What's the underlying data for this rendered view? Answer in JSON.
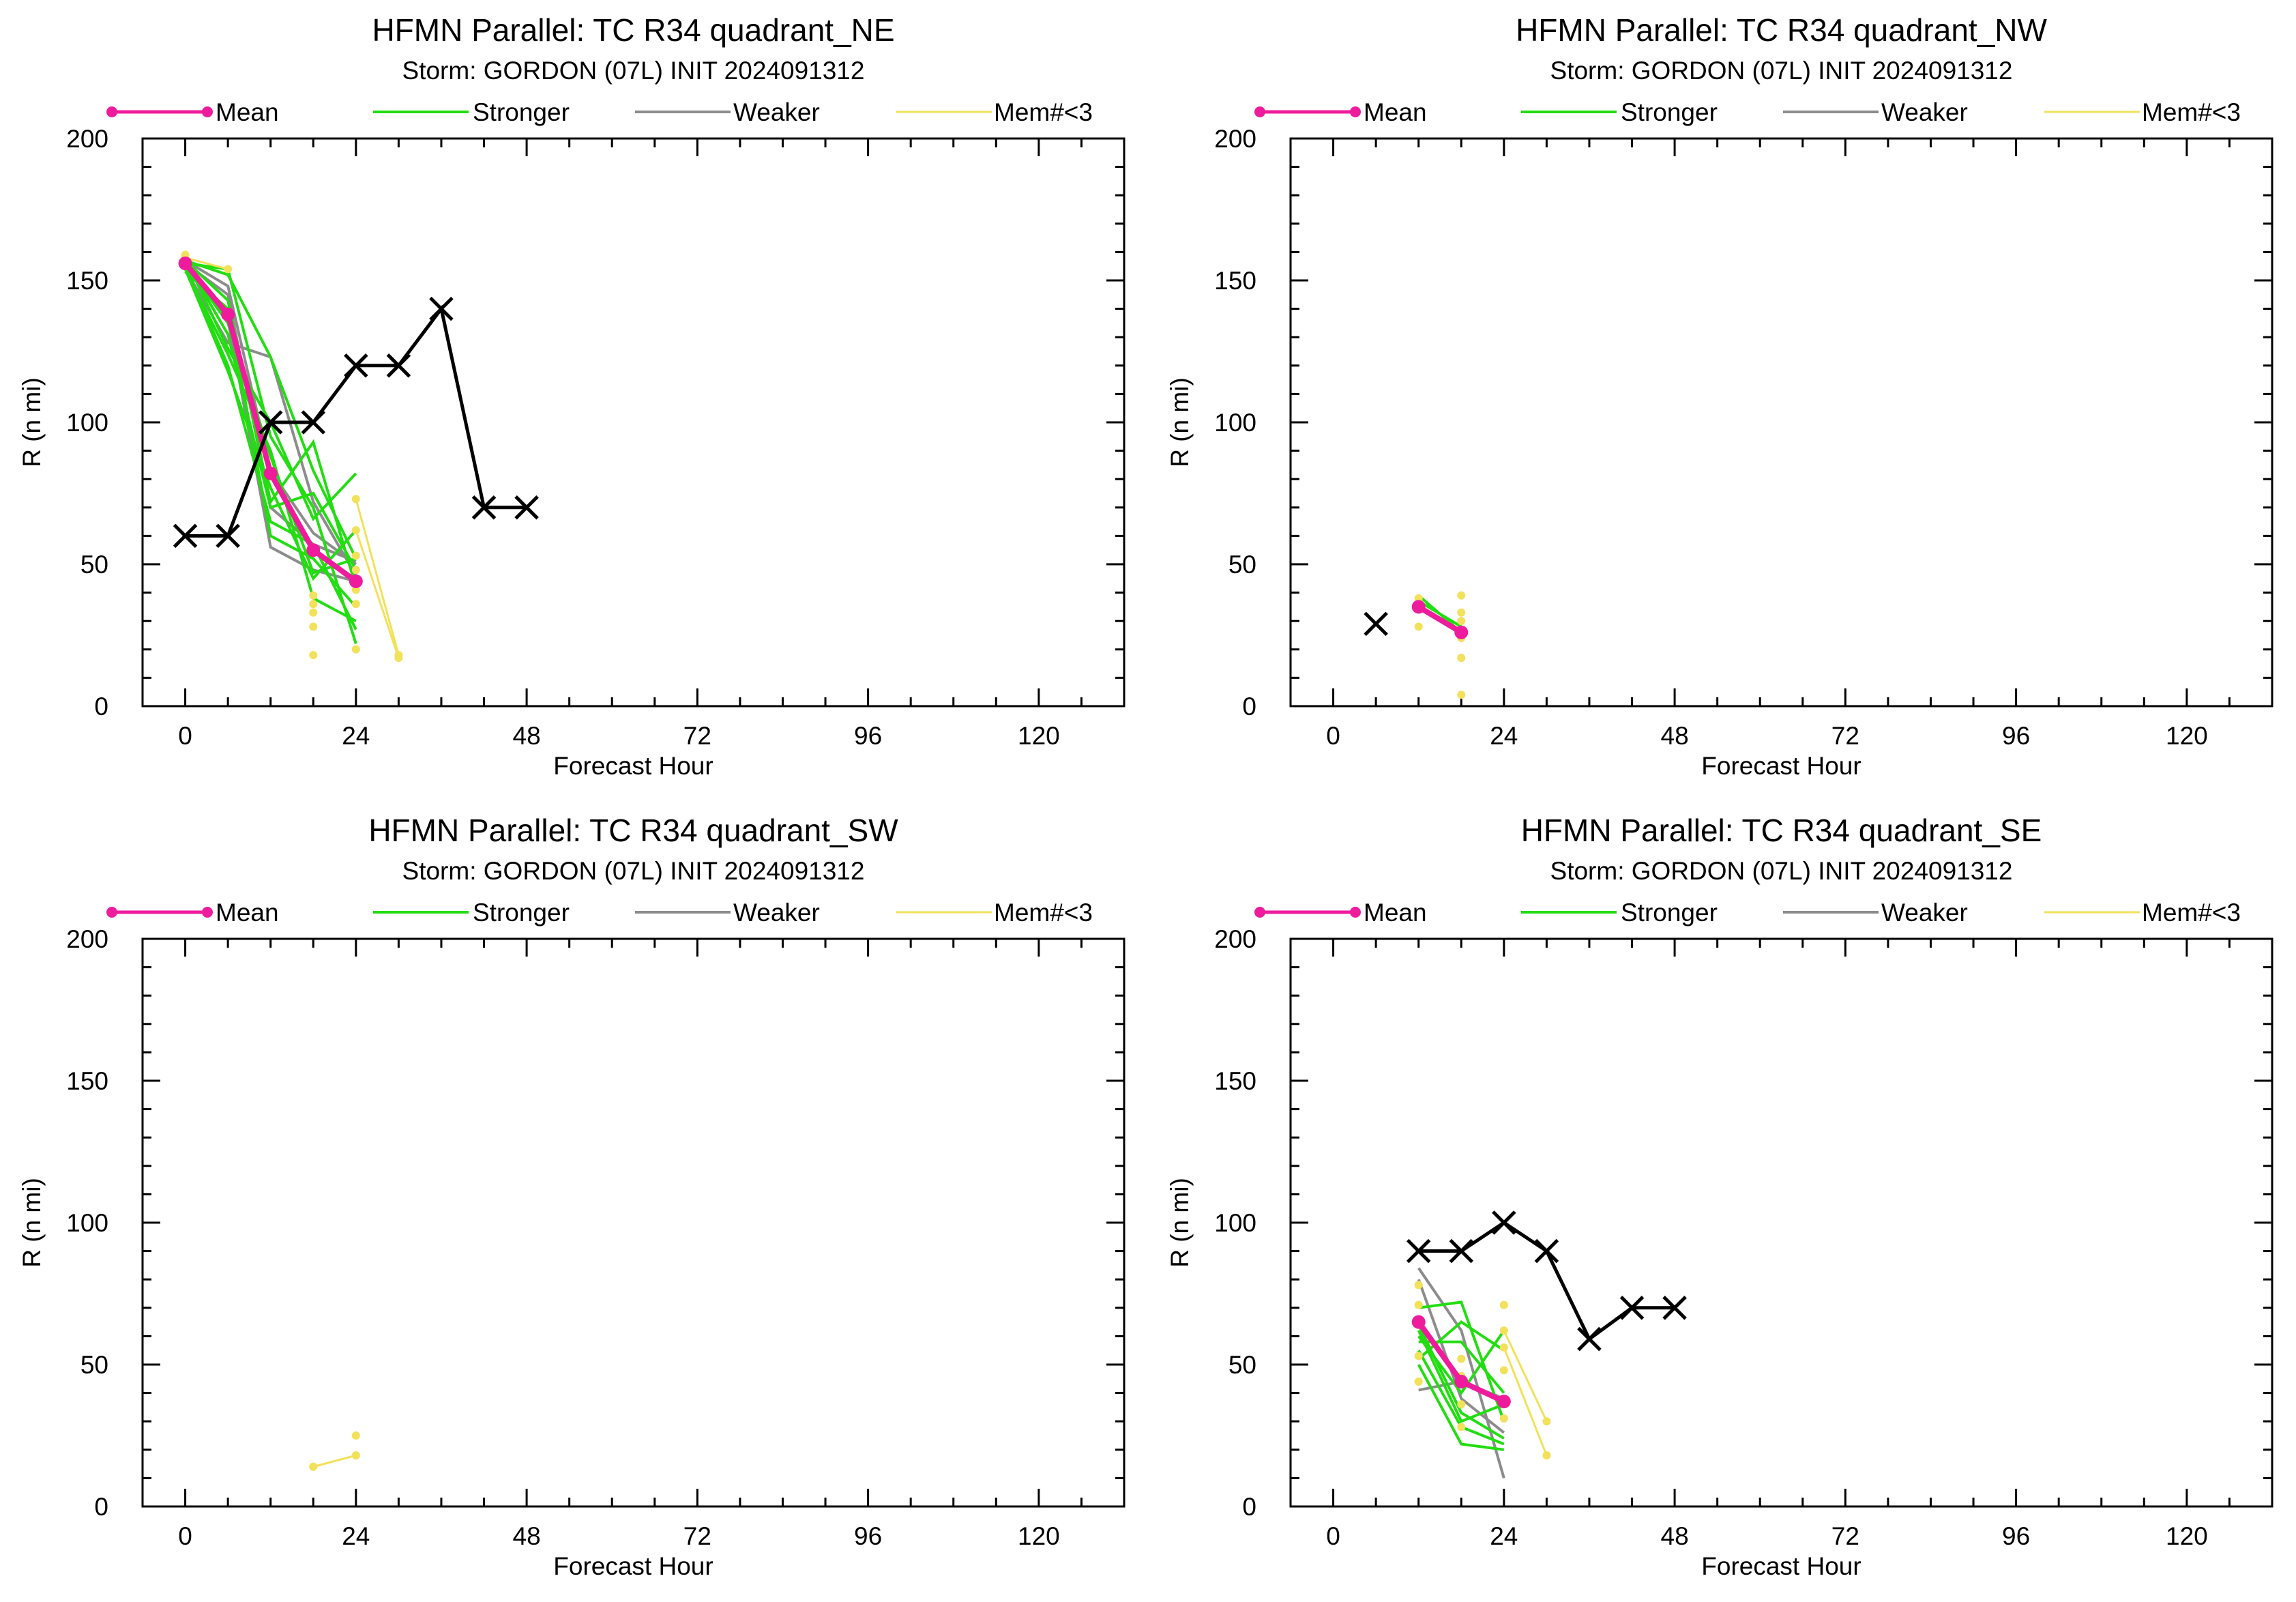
{
  "legend_labels": {
    "mean": "Mean",
    "stronger": "Stronger",
    "weaker": "Weaker",
    "mem": "Mem#<3"
  },
  "colors": {
    "mean": "#ee1c9c",
    "stronger": "#22dd11",
    "weaker": "#8c8c8c",
    "mem": "#f2e15a",
    "obs": "#000000"
  },
  "chart_data": [
    {
      "type": "line",
      "title": "HFMN Parallel: TC  R34 quadrant_NE",
      "subtitle": "Storm: GORDON (07L) INIT 2024091312",
      "xlabel": "Forecast Hour",
      "ylabel": "R (n mi)",
      "xlim": [
        -6,
        132
      ],
      "ylim": [
        0,
        200
      ],
      "xticks": [
        0,
        24,
        48,
        72,
        96,
        120
      ],
      "yticks": [
        0,
        50,
        100,
        150,
        200
      ],
      "mean": {
        "x": [
          0,
          6,
          12,
          18,
          24
        ],
        "y": [
          156,
          138,
          82,
          55,
          44
        ]
      },
      "observed": {
        "x": [
          0,
          6,
          12,
          18,
          24,
          30,
          36,
          42,
          48
        ],
        "y": [
          60,
          60,
          100,
          100,
          120,
          120,
          140,
          70,
          70
        ]
      },
      "stronger": [
        {
          "x": [
            0,
            6,
            12,
            18,
            24
          ],
          "y": [
            157,
            152,
            123,
            83,
            52
          ]
        },
        {
          "x": [
            0,
            6,
            12,
            18,
            24
          ],
          "y": [
            156,
            154,
            95,
            70,
            22
          ]
        },
        {
          "x": [
            0,
            6,
            12,
            18,
            24
          ],
          "y": [
            158,
            126,
            100,
            66,
            82
          ]
        },
        {
          "x": [
            0,
            6,
            12,
            18,
            24
          ],
          "y": [
            154,
            118,
            77,
            45,
            62
          ]
        },
        {
          "x": [
            0,
            6,
            12,
            18,
            24
          ],
          "y": [
            157,
            143,
            72,
            93,
            42
          ]
        },
        {
          "x": [
            0,
            6,
            12,
            18,
            24
          ],
          "y": [
            155,
            120,
            65,
            57,
            27
          ]
        },
        {
          "x": [
            0,
            6,
            12,
            18,
            24
          ],
          "y": [
            156,
            135,
            88,
            47,
            52
          ]
        },
        {
          "x": [
            0,
            6,
            12,
            18,
            24
          ],
          "y": [
            153,
            140,
            60,
            52,
            35
          ]
        },
        {
          "x": [
            0,
            6,
            12,
            18,
            24
          ],
          "y": [
            157,
            131,
            70,
            75,
            48
          ]
        },
        {
          "x": [
            0,
            6,
            12,
            18,
            24
          ],
          "y": [
            154,
            124,
            90,
            38,
            30
          ]
        }
      ],
      "weaker": [
        {
          "x": [
            0,
            6,
            12,
            18,
            24
          ],
          "y": [
            157,
            148,
            83,
            61,
            50
          ]
        },
        {
          "x": [
            0,
            6,
            12,
            18,
            24
          ],
          "y": [
            154,
            128,
            123,
            72,
            46
          ]
        },
        {
          "x": [
            0,
            6,
            12,
            18,
            24
          ],
          "y": [
            155,
            136,
            56,
            48,
            44
          ]
        },
        {
          "x": [
            0,
            6,
            12,
            18,
            24
          ],
          "y": [
            156,
            145,
            70,
            57,
            51
          ]
        }
      ],
      "mem": [
        {
          "x": [
            0,
            6
          ],
          "y": [
            158,
            154
          ]
        },
        {
          "x": [
            24,
            30
          ],
          "y": [
            73,
            18
          ]
        },
        {
          "x": [
            24,
            30
          ],
          "y": [
            62,
            17
          ]
        }
      ],
      "mem_points": {
        "x": [
          0,
          0,
          18,
          18,
          18,
          18,
          18,
          24,
          24,
          24,
          24,
          24
        ],
        "y": [
          159,
          155,
          39,
          33,
          28,
          18,
          36,
          20,
          53,
          41,
          48,
          36
        ]
      }
    },
    {
      "type": "line",
      "title": "HFMN Parallel: TC  R34 quadrant_NW",
      "subtitle": "Storm: GORDON (07L) INIT 2024091312",
      "xlabel": "Forecast Hour",
      "ylabel": "R (n mi)",
      "xlim": [
        -6,
        132
      ],
      "ylim": [
        0,
        200
      ],
      "xticks": [
        0,
        24,
        48,
        72,
        96,
        120
      ],
      "yticks": [
        0,
        50,
        100,
        150,
        200
      ],
      "mean": {
        "x": [
          12,
          18
        ],
        "y": [
          35,
          26
        ]
      },
      "observed": {
        "x": [
          6
        ],
        "y": [
          29
        ]
      },
      "stronger": [
        {
          "x": [
            12,
            18
          ],
          "y": [
            39,
            26
          ]
        },
        {
          "x": [
            12,
            18
          ],
          "y": [
            37,
            28
          ]
        }
      ],
      "weaker": [],
      "mem": [],
      "mem_points": {
        "x": [
          12,
          12,
          18,
          18,
          18,
          18,
          18,
          18
        ],
        "y": [
          38,
          28,
          39,
          33,
          30,
          24,
          17,
          4
        ]
      }
    },
    {
      "type": "line",
      "title": "HFMN Parallel: TC  R34 quadrant_SW",
      "subtitle": "Storm: GORDON (07L) INIT 2024091312",
      "xlabel": "Forecast Hour",
      "ylabel": "R (n mi)",
      "xlim": [
        -6,
        132
      ],
      "ylim": [
        0,
        200
      ],
      "xticks": [
        0,
        24,
        48,
        72,
        96,
        120
      ],
      "yticks": [
        0,
        50,
        100,
        150,
        200
      ],
      "mean": null,
      "observed": null,
      "stronger": [],
      "weaker": [],
      "mem": [
        {
          "x": [
            18,
            24
          ],
          "y": [
            14,
            18
          ]
        }
      ],
      "mem_points": {
        "x": [
          18,
          24,
          24
        ],
        "y": [
          14,
          18,
          25
        ]
      }
    },
    {
      "type": "line",
      "title": "HFMN Parallel: TC  R34 quadrant_SE",
      "subtitle": "Storm: GORDON (07L) INIT 2024091312",
      "xlabel": "Forecast Hour",
      "ylabel": "R (n mi)",
      "xlim": [
        -6,
        132
      ],
      "ylim": [
        0,
        200
      ],
      "xticks": [
        0,
        24,
        48,
        72,
        96,
        120
      ],
      "yticks": [
        0,
        50,
        100,
        150,
        200
      ],
      "mean": {
        "x": [
          12,
          18,
          24
        ],
        "y": [
          65,
          44,
          37
        ]
      },
      "observed": {
        "x": [
          12,
          18,
          24,
          30,
          36,
          42,
          48
        ],
        "y": [
          90,
          90,
          100,
          90,
          59,
          70,
          70
        ]
      },
      "stronger": [
        {
          "x": [
            12,
            18,
            24
          ],
          "y": [
            70,
            72,
            30
          ]
        },
        {
          "x": [
            12,
            18,
            24
          ],
          "y": [
            60,
            40,
            62
          ]
        },
        {
          "x": [
            12,
            18,
            24
          ],
          "y": [
            55,
            28,
            22
          ]
        },
        {
          "x": [
            12,
            18,
            24
          ],
          "y": [
            52,
            65,
            55
          ]
        },
        {
          "x": [
            12,
            18,
            24
          ],
          "y": [
            64,
            33,
            24
          ]
        },
        {
          "x": [
            12,
            18,
            24
          ],
          "y": [
            58,
            58,
            40
          ]
        },
        {
          "x": [
            12,
            18,
            24
          ],
          "y": [
            50,
            22,
            20
          ]
        },
        {
          "x": [
            12,
            18,
            24
          ],
          "y": [
            62,
            30,
            36
          ]
        }
      ],
      "weaker": [
        {
          "x": [
            12,
            18,
            24
          ],
          "y": [
            84,
            62,
            10
          ]
        },
        {
          "x": [
            12,
            18,
            24
          ],
          "y": [
            41,
            44,
            38
          ]
        },
        {
          "x": [
            12,
            18,
            24
          ],
          "y": [
            80,
            38,
            26
          ]
        }
      ],
      "mem": [
        {
          "x": [
            24,
            30
          ],
          "y": [
            62,
            30
          ]
        },
        {
          "x": [
            24,
            30
          ],
          "y": [
            56,
            18
          ]
        }
      ],
      "mem_points": {
        "x": [
          12,
          12,
          12,
          12,
          12,
          18,
          18,
          18,
          18,
          24,
          24,
          24
        ],
        "y": [
          78,
          71,
          66,
          53,
          44,
          52,
          46,
          36,
          28,
          71,
          48,
          31
        ]
      }
    }
  ]
}
